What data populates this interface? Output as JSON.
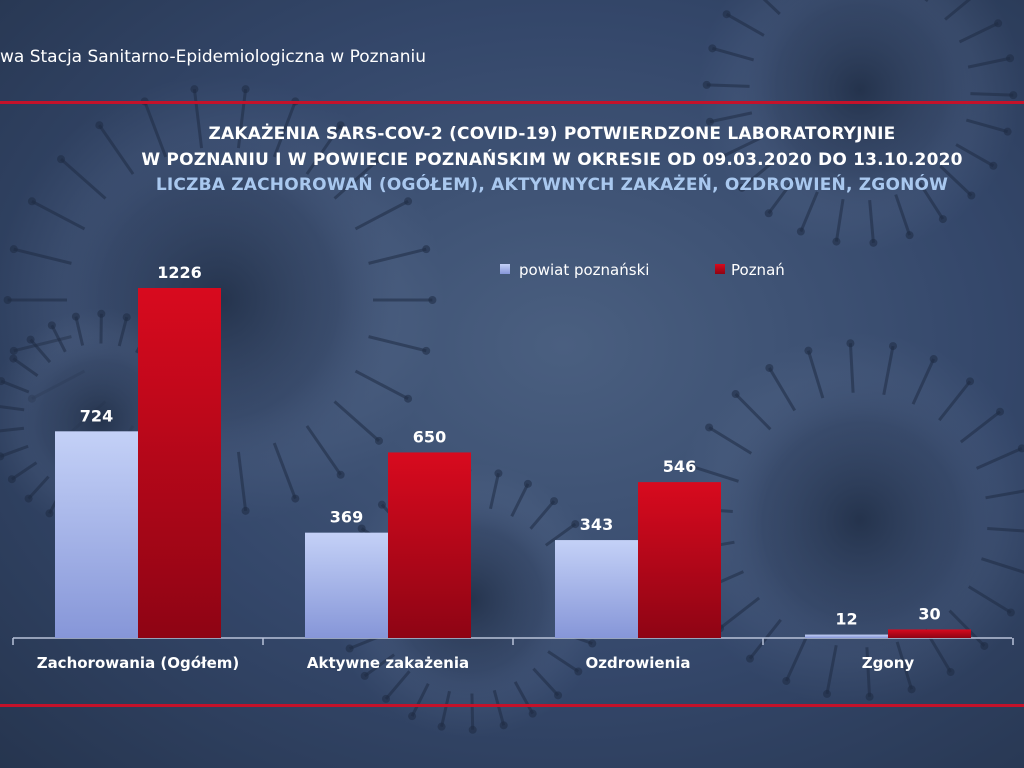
{
  "header": {
    "text": "wa Stacja Sanitarno-Epidemiologiczna w Poznaniu"
  },
  "chart_data": {
    "type": "bar",
    "title": "ZAKAŻENIA SARS-COV-2 (COVID-19) POTWIERDZONE LABORATORYJNIE",
    "subtitle_lines": [
      "W POZNANIU I W POWIECIE POZNAŃSKIM W OKRESIE OD 09.03.2020 DO 13.10.2020",
      "LICZBA ZACHOROWAŃ (OGÓŁEM), AKTYWNYCH ZAKAŻEŃ, OZDROWIEŃ, ZGONÓW"
    ],
    "categories": [
      "Zachorowania (Ogółem)",
      "Aktywne zakażenia",
      "Ozdrowienia",
      "Zgony"
    ],
    "series": [
      {
        "name": "powiat poznański",
        "values": [
          724,
          369,
          343,
          12
        ],
        "color": "#a8b8ee"
      },
      {
        "name": "Poznań",
        "values": [
          1226,
          650,
          546,
          30
        ],
        "color": "#c4061a"
      }
    ],
    "ylim": [
      0,
      1300
    ],
    "legend_position": "top-right",
    "grid": false,
    "data_labels": true
  }
}
